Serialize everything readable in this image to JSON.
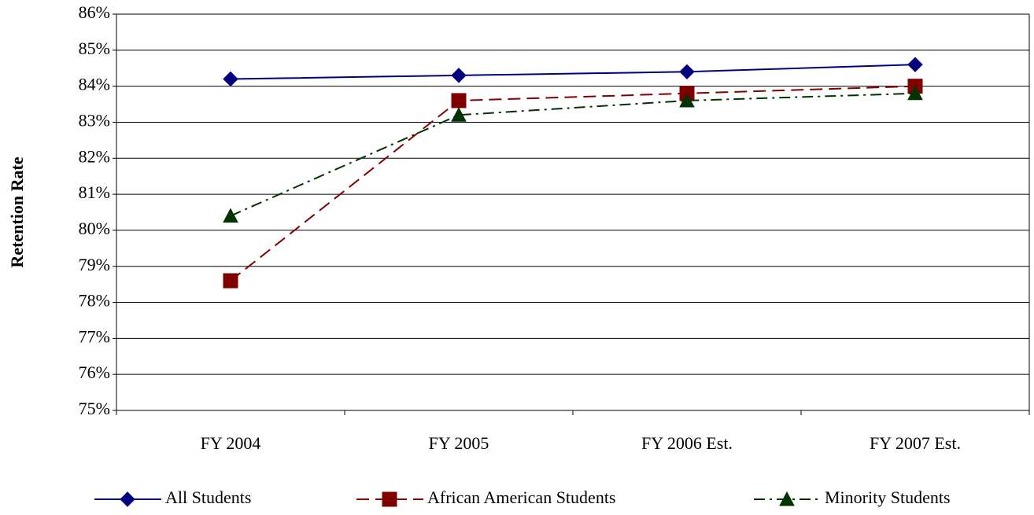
{
  "chart_data": {
    "type": "line",
    "y_label": "Retention Rate",
    "categories": [
      "FY 2004",
      "FY 2005",
      "FY 2006 Est.",
      "FY 2007 Est."
    ],
    "series": [
      {
        "name": "All Students",
        "color": "#000080",
        "marker": "diamond",
        "line_style": "solid",
        "values": [
          84.2,
          84.3,
          84.4,
          84.6
        ]
      },
      {
        "name": "African American Students",
        "color": "#800000",
        "marker": "square",
        "line_style": "dashed",
        "values": [
          78.6,
          83.6,
          83.8,
          84.0
        ]
      },
      {
        "name": "Minority Students",
        "color": "#003300",
        "marker": "triangle",
        "line_style": "dashdot",
        "values": [
          80.4,
          83.2,
          83.6,
          83.8
        ]
      }
    ],
    "ylim": [
      75,
      86
    ],
    "yticks": [
      {
        "value": 75,
        "label": "75%"
      },
      {
        "value": 76,
        "label": "76%"
      },
      {
        "value": 77,
        "label": "77%"
      },
      {
        "value": 78,
        "label": "78%"
      },
      {
        "value": 79,
        "label": "79%"
      },
      {
        "value": 80,
        "label": "80%"
      },
      {
        "value": 81,
        "label": "81%"
      },
      {
        "value": 82,
        "label": "82%"
      },
      {
        "value": 83,
        "label": "83%"
      },
      {
        "value": 84,
        "label": "84%"
      },
      {
        "value": 85,
        "label": "85%"
      },
      {
        "value": 86,
        "label": "86%"
      }
    ],
    "grid": true,
    "legend": "bottom"
  }
}
